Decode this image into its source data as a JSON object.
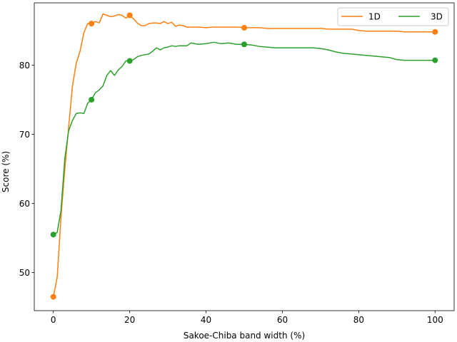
{
  "chart_data": {
    "type": "line",
    "xlabel": "Sakoe-Chiba band width (%)",
    "ylabel": "Score (%)",
    "xlim": [
      -5,
      105
    ],
    "ylim": [
      44.5,
      89
    ],
    "xticks": [
      0,
      20,
      40,
      60,
      80,
      100
    ],
    "yticks": [
      50,
      60,
      70,
      80
    ],
    "grid": false,
    "legend_position": "top-right",
    "legend_columns": 2,
    "series": [
      {
        "name": "1D",
        "color": "#ff7f0e",
        "x": [
          0,
          1,
          2,
          3,
          4,
          5,
          6,
          7,
          8,
          9,
          10,
          11,
          12,
          13,
          14,
          15,
          16,
          17,
          18,
          19,
          20,
          21,
          22,
          23,
          24,
          25,
          26,
          27,
          28,
          29,
          30,
          31,
          32,
          33,
          34,
          35,
          36,
          38,
          40,
          42,
          44,
          46,
          48,
          50,
          52,
          54,
          56,
          58,
          60,
          62,
          64,
          66,
          68,
          70,
          72,
          74,
          76,
          78,
          80,
          82,
          84,
          86,
          88,
          90,
          92,
          94,
          96,
          98,
          100
        ],
        "y": [
          46.5,
          49.3,
          58.0,
          65.0,
          71.0,
          77.0,
          80.3,
          82.0,
          84.7,
          86.0,
          86.0,
          86.3,
          86.1,
          87.4,
          87.2,
          87.0,
          87.1,
          87.3,
          87.2,
          86.8,
          87.2,
          86.7,
          86.1,
          85.7,
          85.7,
          86.0,
          86.1,
          86.1,
          86.0,
          86.3,
          86.0,
          86.2,
          85.6,
          85.8,
          85.7,
          85.5,
          85.5,
          85.5,
          85.4,
          85.5,
          85.5,
          85.5,
          85.5,
          85.4,
          85.4,
          85.4,
          85.3,
          85.3,
          85.3,
          85.3,
          85.3,
          85.3,
          85.3,
          85.3,
          85.2,
          85.2,
          85.2,
          85.2,
          85.0,
          84.9,
          84.9,
          84.9,
          84.9,
          84.9,
          84.8,
          84.8,
          84.8,
          84.8,
          84.8
        ],
        "markers": {
          "x": [
            0,
            10,
            20,
            50,
            100
          ],
          "y": [
            46.5,
            86.0,
            87.2,
            85.4,
            84.8
          ]
        }
      },
      {
        "name": "3D",
        "color": "#2ca02c",
        "x": [
          0,
          1,
          2,
          3,
          4,
          5,
          6,
          7,
          8,
          9,
          10,
          11,
          12,
          13,
          14,
          15,
          16,
          17,
          18,
          19,
          20,
          21,
          22,
          23,
          24,
          25,
          26,
          27,
          28,
          29,
          30,
          31,
          32,
          33,
          34,
          35,
          36,
          38,
          40,
          42,
          44,
          46,
          48,
          50,
          52,
          54,
          56,
          58,
          60,
          62,
          64,
          66,
          68,
          70,
          72,
          74,
          76,
          78,
          80,
          82,
          84,
          86,
          88,
          90,
          92,
          94,
          96,
          98,
          100
        ],
        "y": [
          55.5,
          55.8,
          59.0,
          66.5,
          70.5,
          72.0,
          73.0,
          73.1,
          73.0,
          74.5,
          75.0,
          76.0,
          76.4,
          77.0,
          78.5,
          79.2,
          78.5,
          79.3,
          79.8,
          80.6,
          80.6,
          80.8,
          81.2,
          81.4,
          81.5,
          81.6,
          82.0,
          82.5,
          82.2,
          82.5,
          82.6,
          82.8,
          82.7,
          82.8,
          82.8,
          82.8,
          83.2,
          83.0,
          83.1,
          83.3,
          83.1,
          83.2,
          83.0,
          83.0,
          82.9,
          82.7,
          82.6,
          82.5,
          82.5,
          82.5,
          82.5,
          82.5,
          82.5,
          82.4,
          82.2,
          81.9,
          81.7,
          81.6,
          81.5,
          81.4,
          81.3,
          81.2,
          81.1,
          80.8,
          80.7,
          80.7,
          80.7,
          80.7,
          80.7
        ],
        "markers": {
          "x": [
            0,
            10,
            20,
            50,
            100
          ],
          "y": [
            55.5,
            75.0,
            80.6,
            83.0,
            80.7
          ]
        }
      }
    ]
  }
}
